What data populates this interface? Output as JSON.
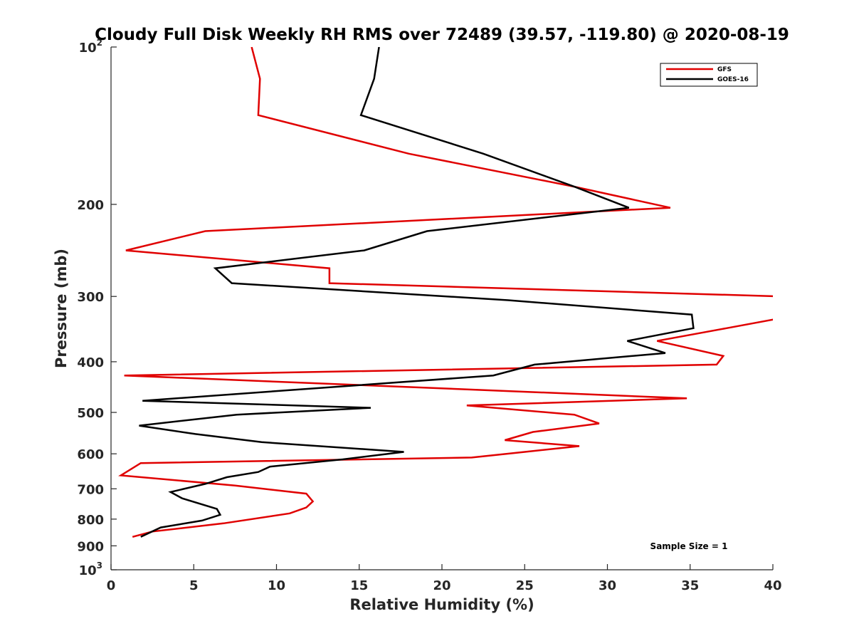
{
  "chart_data": {
    "type": "line",
    "title": "Cloudy Full Disk Weekly RH RMS over 72489 (39.57, -119.80) @ 2020-08-19",
    "xlabel": "Relative Humidity (%)",
    "ylabel": "Pressure (mb)",
    "xlim": [
      0,
      40
    ],
    "ylim": [
      100,
      1000
    ],
    "y_scale": "log",
    "y_reversed": true,
    "x_ticks": [
      "0",
      "5",
      "10",
      "15",
      "20",
      "25",
      "30",
      "35",
      "40"
    ],
    "y_ticks": [
      {
        "value": 100,
        "label": "10",
        "sup": "2"
      },
      {
        "value": 200,
        "label": "200",
        "sup": ""
      },
      {
        "value": 300,
        "label": "300",
        "sup": ""
      },
      {
        "value": 400,
        "label": "400",
        "sup": ""
      },
      {
        "value": 500,
        "label": "500",
        "sup": ""
      },
      {
        "value": 600,
        "label": "600",
        "sup": ""
      },
      {
        "value": 700,
        "label": "700",
        "sup": ""
      },
      {
        "value": 800,
        "label": "800",
        "sup": ""
      },
      {
        "value": 900,
        "label": "900",
        "sup": ""
      },
      {
        "value": 1000,
        "label": "10",
        "sup": "3"
      }
    ],
    "grid": false,
    "legend": "top-right",
    "annotation": "Sample Size = 1",
    "series": [
      {
        "name": "GFS",
        "color": "#e00000",
        "points": [
          [
            8.5,
            100
          ],
          [
            9.0,
            115
          ],
          [
            8.9,
            135
          ],
          [
            18.0,
            160
          ],
          [
            28.0,
            185
          ],
          [
            33.8,
            203
          ],
          [
            5.7,
            225
          ],
          [
            0.9,
            245
          ],
          [
            13.2,
            265
          ],
          [
            13.2,
            283
          ],
          [
            40.5,
            300
          ],
          [
            40.5,
            330
          ],
          [
            37.2,
            345
          ],
          [
            33.0,
            365
          ],
          [
            37.0,
            390
          ],
          [
            36.6,
            405
          ],
          [
            0.8,
            425
          ],
          [
            34.8,
            470
          ],
          [
            21.5,
            485
          ],
          [
            28.0,
            505
          ],
          [
            29.5,
            525
          ],
          [
            25.5,
            545
          ],
          [
            23.8,
            565
          ],
          [
            28.3,
            580
          ],
          [
            21.8,
            610
          ],
          [
            1.8,
            625
          ],
          [
            0.6,
            660
          ],
          [
            7.5,
            690
          ],
          [
            11.8,
            715
          ],
          [
            12.2,
            740
          ],
          [
            11.8,
            760
          ],
          [
            10.8,
            780
          ],
          [
            6.8,
            815
          ],
          [
            2.5,
            845
          ],
          [
            1.3,
            865
          ]
        ]
      },
      {
        "name": "GOES-16",
        "color": "#000000",
        "points": [
          [
            16.2,
            100
          ],
          [
            15.9,
            115
          ],
          [
            15.1,
            135
          ],
          [
            22.5,
            160
          ],
          [
            28.0,
            185
          ],
          [
            31.3,
            203
          ],
          [
            19.1,
            225
          ],
          [
            15.3,
            245
          ],
          [
            6.3,
            265
          ],
          [
            7.3,
            283
          ],
          [
            24.0,
            305
          ],
          [
            35.1,
            325
          ],
          [
            35.2,
            345
          ],
          [
            31.2,
            365
          ],
          [
            33.5,
            385
          ],
          [
            25.6,
            405
          ],
          [
            23.1,
            425
          ],
          [
            1.9,
            475
          ],
          [
            15.7,
            490
          ],
          [
            7.6,
            505
          ],
          [
            1.7,
            530
          ],
          [
            5.1,
            550
          ],
          [
            9.1,
            570
          ],
          [
            17.7,
            595
          ],
          [
            14.0,
            615
          ],
          [
            9.6,
            635
          ],
          [
            8.9,
            650
          ],
          [
            7.0,
            665
          ],
          [
            5.7,
            685
          ],
          [
            3.6,
            710
          ],
          [
            4.3,
            730
          ],
          [
            6.4,
            765
          ],
          [
            6.6,
            785
          ],
          [
            5.5,
            805
          ],
          [
            3.0,
            830
          ],
          [
            1.8,
            865
          ]
        ]
      }
    ]
  }
}
